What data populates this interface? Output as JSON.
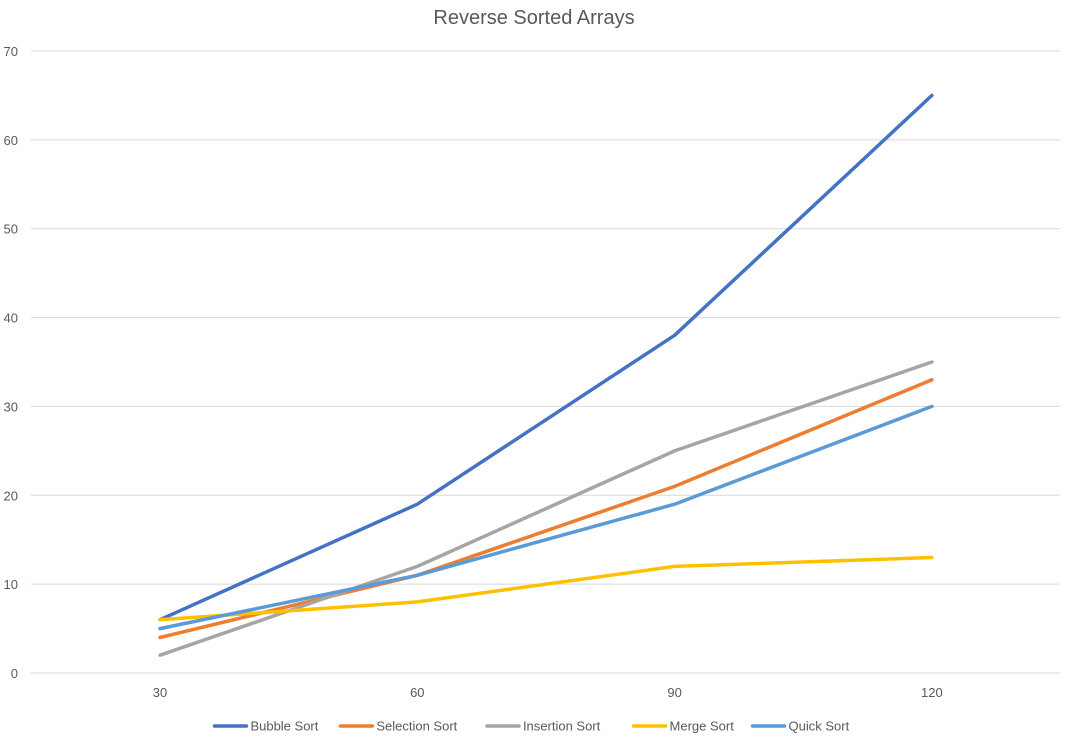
{
  "chart_data": {
    "type": "line",
    "title": "Reverse Sorted Arrays",
    "xlabel": "",
    "ylabel": "",
    "categories": [
      "30",
      "60",
      "90",
      "120"
    ],
    "ylim": [
      0,
      70
    ],
    "yticks": [
      0,
      10,
      20,
      30,
      40,
      50,
      60,
      70
    ],
    "grid": true,
    "legend_position": "bottom",
    "series": [
      {
        "name": "Bubble Sort",
        "color": "#4472c4",
        "values": [
          6,
          19,
          38,
          65
        ]
      },
      {
        "name": "Selection Sort",
        "color": "#ed7d31",
        "values": [
          4,
          11,
          21,
          33
        ]
      },
      {
        "name": "Insertion Sort",
        "color": "#a5a5a5",
        "values": [
          2,
          12,
          25,
          35
        ]
      },
      {
        "name": "Merge Sort",
        "color": "#ffc000",
        "values": [
          6,
          8,
          12,
          13
        ]
      },
      {
        "name": "Quick Sort",
        "color": "#5b9bd5",
        "values": [
          5,
          11,
          19,
          30
        ]
      }
    ]
  }
}
